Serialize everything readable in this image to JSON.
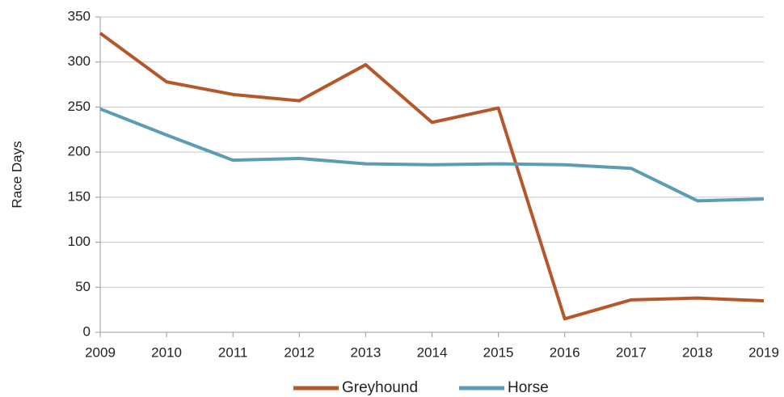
{
  "chart_data": {
    "type": "line",
    "y_label": "Race Days",
    "x": [
      2009,
      2010,
      2011,
      2012,
      2013,
      2014,
      2015,
      2016,
      2017,
      2018,
      2019
    ],
    "xlim": [
      2009,
      2019
    ],
    "xticks": [
      2009,
      2010,
      2011,
      2012,
      2013,
      2014,
      2015,
      2016,
      2017,
      2018,
      2019
    ],
    "ylim": [
      0,
      350
    ],
    "yticks": [
      0,
      50,
      100,
      150,
      200,
      250,
      300,
      350
    ],
    "grid": true,
    "legend": "bottom",
    "series": [
      {
        "name": "Greyhound",
        "color": "#b5572b",
        "values": [
          332,
          278,
          264,
          257,
          297,
          233,
          249,
          15,
          36,
          38,
          35
        ]
      },
      {
        "name": "Horse",
        "color": "#5b9db3",
        "values": [
          248,
          219,
          191,
          193,
          187,
          186,
          187,
          186,
          182,
          146,
          148
        ]
      }
    ]
  }
}
